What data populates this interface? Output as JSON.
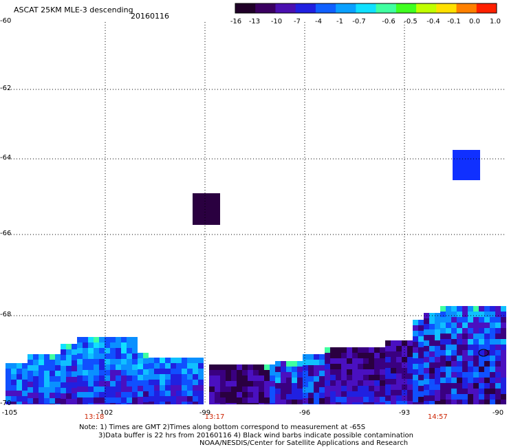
{
  "header": {
    "title": "ASCAT 25KM MLE-3 descending",
    "date": "20160116"
  },
  "colorbar": {
    "labels": [
      "-16",
      "-13",
      "-10",
      "-7",
      "-4",
      "-1",
      "-0.7",
      "-0.6",
      "-0.5",
      "-0.4",
      "-0.1",
      "0.0",
      "1.0"
    ],
    "colors": [
      "#200028",
      "#3a0060",
      "#4a10b0",
      "#2020e0",
      "#1060ff",
      "#0aa0ff",
      "#10e0ff",
      "#40ffa0",
      "#40ff20",
      "#c0ff00",
      "#ffe000",
      "#ff8000",
      "#ff2000"
    ]
  },
  "chart_data": {
    "type": "heatmap",
    "title": "ASCAT 25KM MLE-3 descending",
    "subtitle": "20160116",
    "xlim": [
      -105,
      -90
    ],
    "ylim": [
      -70,
      -60
    ],
    "x_ticks": [
      "-105",
      "-102",
      "-99",
      "-96",
      "-93",
      "-90"
    ],
    "y_ticks": [
      "-60",
      "-62",
      "-64",
      "-66",
      "-68",
      "-70"
    ],
    "time_labels": [
      {
        "x": -102,
        "label": "13:18"
      },
      {
        "x": -99,
        "label": "13:17"
      },
      {
        "x": -92,
        "label": "14:57"
      }
    ],
    "grid": true,
    "colorbar_position": "top-right",
    "isolated_cells": [
      {
        "lon": -99,
        "lat": -65.3,
        "value": -15
      },
      {
        "lon": -92,
        "lat": -64.2,
        "value": -7
      }
    ]
  },
  "notes": {
    "line1": "Note: 1) Times are GMT 2)Times along bottom correspond to measurement at -65S",
    "line2": "3)Data buffer is 22 hrs from 20160116 4) Black wind barbs indicate possible contamination",
    "line3": "NOAA/NESDIS/Center for Satellite Applications and Research"
  }
}
